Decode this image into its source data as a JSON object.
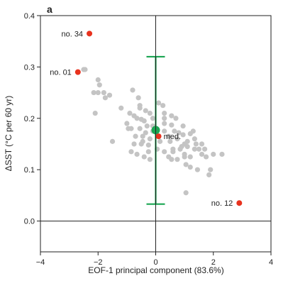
{
  "chart_data": {
    "type": "scatter",
    "panel_label": "a",
    "xlabel": "EOF-1 principal component (83.6%)",
    "ylabel": "ΔSST (°C per 60 yr)",
    "xlim": [
      -4,
      4
    ],
    "ylim": [
      -0.06,
      0.4
    ],
    "x_ticks": [
      -4,
      -2,
      0,
      2,
      4
    ],
    "x_tick_labels": [
      "−4",
      "−2",
      "0",
      "2",
      "4"
    ],
    "y_ticks": [
      0.0,
      0.1,
      0.2,
      0.3,
      0.4
    ],
    "y_tick_labels": [
      "0.0",
      "0.1",
      "0.2",
      "0.3",
      "0.4"
    ],
    "zero_lines": {
      "x": 0,
      "y": 0
    },
    "grid": false,
    "colors": {
      "cloud": "#c4c4c4",
      "highlight": "#e8321e",
      "median": "#1aa552",
      "axis": "#222222"
    },
    "cloud_points": [
      [
        -2.45,
        0.295
      ],
      [
        -2.5,
        0.295
      ],
      [
        -2.0,
        0.275
      ],
      [
        -1.95,
        0.265
      ],
      [
        -2.0,
        0.25
      ],
      [
        -1.8,
        0.25
      ],
      [
        -1.6,
        0.245
      ],
      [
        -1.75,
        0.24
      ],
      [
        -2.1,
        0.21
      ],
      [
        -2.15,
        0.25
      ],
      [
        -0.8,
        0.255
      ],
      [
        -0.6,
        0.24
      ],
      [
        -0.55,
        0.225
      ],
      [
        -0.35,
        0.215
      ],
      [
        0.3,
        0.21
      ],
      [
        -0.9,
        0.21
      ],
      [
        -0.75,
        0.205
      ],
      [
        -0.65,
        0.2
      ],
      [
        -0.5,
        0.198
      ],
      [
        -0.4,
        0.195
      ],
      [
        -0.2,
        0.21
      ],
      [
        -0.1,
        0.2
      ],
      [
        0.3,
        0.2
      ],
      [
        0.55,
        0.205
      ],
      [
        0.7,
        0.2
      ],
      [
        0.25,
        0.225
      ],
      [
        0.3,
        0.19
      ],
      [
        0.55,
        0.187
      ],
      [
        -0.3,
        0.185
      ],
      [
        -0.55,
        0.18
      ],
      [
        -0.85,
        0.18
      ],
      [
        -0.95,
        0.18
      ],
      [
        -0.35,
        0.172
      ],
      [
        -0.1,
        0.175
      ],
      [
        0.3,
        0.175
      ],
      [
        0.65,
        0.175
      ],
      [
        0.8,
        0.172
      ],
      [
        -0.7,
        0.165
      ],
      [
        -0.45,
        0.165
      ],
      [
        0.45,
        0.165
      ],
      [
        0.95,
        0.168
      ],
      [
        1.2,
        0.17
      ],
      [
        1.35,
        0.16
      ],
      [
        -0.45,
        0.155
      ],
      [
        -0.75,
        0.15
      ],
      [
        -0.5,
        0.15
      ],
      [
        -0.25,
        0.148
      ],
      [
        0.5,
        0.155
      ],
      [
        0.75,
        0.16
      ],
      [
        1.0,
        0.15
      ],
      [
        1.1,
        0.155
      ],
      [
        1.4,
        0.15
      ],
      [
        1.6,
        0.15
      ],
      [
        1.1,
        0.145
      ],
      [
        -1.5,
        0.155
      ],
      [
        -0.25,
        0.135
      ],
      [
        0.05,
        0.14
      ],
      [
        0.3,
        0.135
      ],
      [
        0.6,
        0.14
      ],
      [
        0.85,
        0.14
      ],
      [
        1.0,
        0.13
      ],
      [
        1.35,
        0.14
      ],
      [
        1.6,
        0.13
      ],
      [
        1.7,
        0.14
      ],
      [
        -0.85,
        0.135
      ],
      [
        -0.65,
        0.13
      ],
      [
        -0.4,
        0.125
      ],
      [
        -0.2,
        0.12
      ],
      [
        0.45,
        0.125
      ],
      [
        0.55,
        0.12
      ],
      [
        0.75,
        0.12
      ],
      [
        1.0,
        0.125
      ],
      [
        1.75,
        0.125
      ],
      [
        2.0,
        0.13
      ],
      [
        2.3,
        0.13
      ],
      [
        1.05,
        0.11
      ],
      [
        1.2,
        0.105
      ],
      [
        1.45,
        0.1
      ],
      [
        1.9,
        0.1
      ],
      [
        1.85,
        0.09
      ],
      [
        1.05,
        0.055
      ],
      [
        -0.55,
        0.22
      ],
      [
        0.1,
        0.23
      ],
      [
        -1.2,
        0.22
      ],
      [
        -0.1,
        0.185
      ],
      [
        0.9,
        0.145
      ],
      [
        1.2,
        0.125
      ],
      [
        -1.0,
        0.19
      ],
      [
        0.15,
        0.155
      ],
      [
        1.5,
        0.14
      ],
      [
        -0.2,
        0.16
      ],
      [
        0.95,
        0.185
      ],
      [
        1.3,
        0.175
      ],
      [
        0.6,
        0.135
      ]
    ],
    "highlighted": [
      {
        "label": "no. 34",
        "x": -2.3,
        "y": 0.365
      },
      {
        "label": "no. 01",
        "x": -2.7,
        "y": 0.29
      },
      {
        "label": "med.",
        "x": 0.1,
        "y": 0.165
      },
      {
        "label": "no. 12",
        "x": 2.9,
        "y": 0.035
      }
    ],
    "median_point": {
      "x": 0.0,
      "y": 0.177
    },
    "error_bar": {
      "x": 0.0,
      "low": 0.033,
      "high": 0.32
    }
  }
}
